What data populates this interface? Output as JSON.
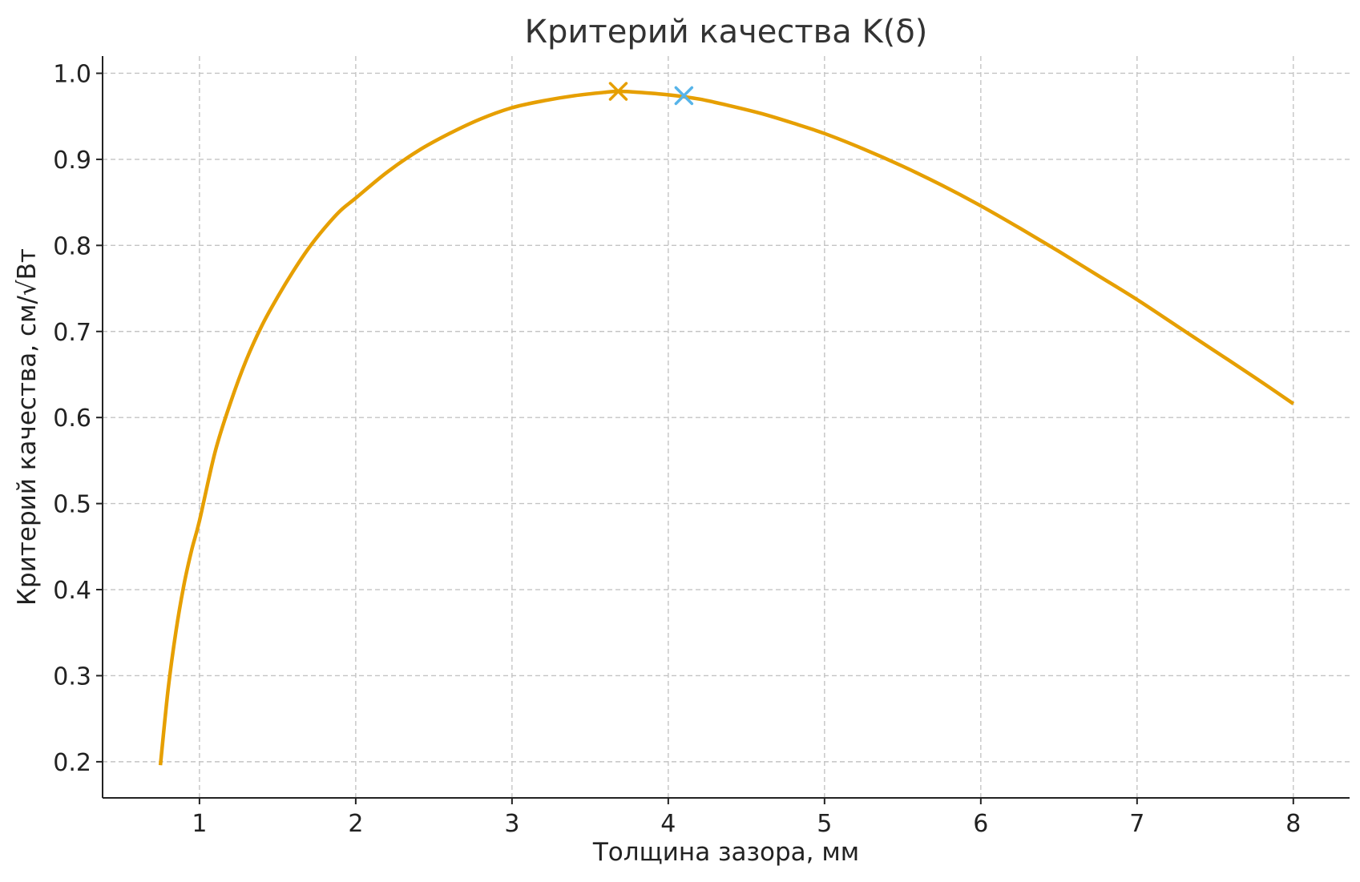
{
  "chart_data": {
    "type": "line",
    "title": "Критерий качества K(δ)",
    "xlabel": "Толщина зазора, мм",
    "ylabel": "Критерий качества, см/√Вт",
    "xlim": [
      0.38,
      8.36
    ],
    "ylim": [
      0.158,
      1.02
    ],
    "xticks": [
      1,
      2,
      3,
      4,
      5,
      6,
      7,
      8
    ],
    "yticks": [
      0.2,
      0.3,
      0.4,
      0.5,
      0.6,
      0.7,
      0.8,
      0.9,
      1.0
    ],
    "xtick_labels": [
      "1",
      "2",
      "3",
      "4",
      "5",
      "6",
      "7",
      "8"
    ],
    "ytick_labels": [
      "0.2",
      "0.3",
      "0.4",
      "0.5",
      "0.6",
      "0.7",
      "0.8",
      "0.9",
      "1.0"
    ],
    "grid": true,
    "series": [
      {
        "color": "#E69F00",
        "x": [
          0.75,
          0.8,
          0.85,
          0.9,
          0.95,
          1.0,
          1.1,
          1.2,
          1.3,
          1.4,
          1.5,
          1.6,
          1.7,
          1.8,
          1.9,
          2.0,
          2.2,
          2.4,
          2.6,
          2.8,
          3.0,
          3.2,
          3.4,
          3.6,
          3.68,
          3.8,
          4.0,
          4.2,
          4.4,
          4.6,
          4.8,
          5.0,
          5.25,
          5.5,
          5.75,
          6.0,
          6.25,
          6.5,
          6.75,
          7.0,
          7.25,
          7.5,
          7.75,
          8.0
        ],
        "y": [
          0.196,
          0.285,
          0.352,
          0.405,
          0.446,
          0.48,
          0.56,
          0.618,
          0.667,
          0.707,
          0.74,
          0.77,
          0.797,
          0.82,
          0.84,
          0.855,
          0.885,
          0.91,
          0.93,
          0.947,
          0.96,
          0.968,
          0.974,
          0.978,
          0.979,
          0.978,
          0.975,
          0.97,
          0.962,
          0.953,
          0.942,
          0.93,
          0.912,
          0.892,
          0.87,
          0.846,
          0.82,
          0.793,
          0.765,
          0.737,
          0.707,
          0.677,
          0.647,
          0.616
        ]
      }
    ],
    "markers": [
      {
        "x": 3.68,
        "y": 0.979,
        "color": "#E69F00",
        "symbol": "x"
      },
      {
        "x": 4.1,
        "y": 0.974,
        "color": "#56B4E9",
        "symbol": "x"
      }
    ]
  }
}
